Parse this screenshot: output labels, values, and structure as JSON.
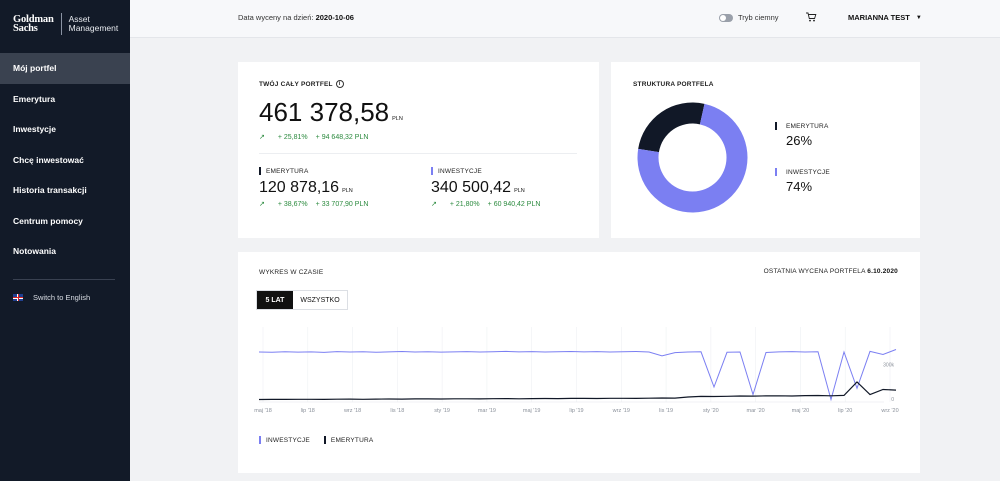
{
  "brand": {
    "name_line1": "Goldman",
    "name_line2": "Sachs",
    "sub_line1": "Asset",
    "sub_line2": "Management"
  },
  "sidebar": {
    "items": [
      {
        "label": "Mój portfel",
        "active": true
      },
      {
        "label": "Emerytura"
      },
      {
        "label": "Inwestycje"
      },
      {
        "label": "Chcę inwestować"
      },
      {
        "label": "Historia transakcji"
      },
      {
        "label": "Centrum pomocy"
      },
      {
        "label": "Notowania"
      }
    ],
    "language": "Switch to English"
  },
  "header": {
    "valuation_label": "Data wyceny na dzień:",
    "valuation_date": "2020-10-06",
    "dark_mode_label": "Tryb ciemny",
    "user_name": "MARIANNA TEST"
  },
  "portfolio": {
    "title": "TWÓJ CAŁY PORTFEL",
    "total": "461 378,58",
    "currency": "PLN",
    "gain_pct": "+ 25,81%",
    "gain_amount": "+ 94 648,32 PLN",
    "emerytura": {
      "label": "EMERYTURA",
      "value": "120 878,16",
      "gain_pct": "+ 38,67%",
      "gain_amount": "+ 33 707,90 PLN"
    },
    "inwestycje": {
      "label": "INWESTYCJE",
      "value": "340 500,42",
      "gain_pct": "+ 21,80%",
      "gain_amount": "+ 60 940,42 PLN"
    }
  },
  "structure": {
    "title": "STRUKTURA PORTFELA",
    "items": [
      {
        "label": "EMERYTURA",
        "pct": "26%",
        "value": 26,
        "color": "#111827"
      },
      {
        "label": "INWESTYCJE",
        "pct": "74%",
        "value": 74,
        "color": "#7b7ff2"
      }
    ]
  },
  "chart_section": {
    "title": "WYKRES W CZASIE",
    "last_valuation_label": "OSTATNIA WYCENA PORTFELA",
    "last_valuation_date": "6.10.2020",
    "range_buttons": [
      "5 LAT",
      "WSZYSTKO"
    ]
  },
  "colors": {
    "inwestycje": "#7b7ff2",
    "emerytura": "#111827",
    "positive": "#2b8a3e",
    "sidebar": "#121a28"
  },
  "chart_data": {
    "type": "line",
    "x_ticks": [
      "maj '18",
      "lip '18",
      "wrz '18",
      "lis '18",
      "sty '19",
      "mar '19",
      "maj '19",
      "lip '19",
      "wrz '19",
      "lis '19",
      "sty '20",
      "mar '20",
      "maj '20",
      "lip '20",
      "wrz '20"
    ],
    "y_ticks": [
      "0",
      "300k"
    ],
    "ylim": [
      0,
      600000
    ],
    "series": [
      {
        "name": "INWESTYCJE",
        "color": "#7b7ff2",
        "values": [
          400000,
          398000,
          402000,
          399000,
          401000,
          397000,
          403000,
          400000,
          402000,
          398000,
          401000,
          404000,
          400000,
          402000,
          399000,
          401000,
          403000,
          400000,
          402000,
          405000,
          401000,
          403000,
          400000,
          402000,
          404000,
          401000,
          403000,
          400000,
          402000,
          404000,
          400000,
          370000,
          395000,
          400000,
          402000,
          120000,
          398000,
          400000,
          60000,
          396000,
          401000,
          403000,
          400000,
          402000,
          20000,
          400000,
          110000,
          405000,
          380000,
          420000
        ]
      },
      {
        "name": "EMERYTURA",
        "color": "#111827",
        "values": [
          20000,
          21000,
          20500,
          21500,
          22000,
          21000,
          22500,
          23000,
          22000,
          23500,
          24000,
          23000,
          24500,
          25000,
          24000,
          25500,
          26000,
          25000,
          26500,
          27000,
          26000,
          27500,
          28000,
          27000,
          28500,
          29000,
          28000,
          29500,
          30000,
          29000,
          30500,
          32000,
          31000,
          40000,
          45000,
          44000,
          46000,
          48000,
          47000,
          49000,
          50000,
          48000,
          51000,
          52000,
          50000,
          53000,
          160000,
          60000,
          100000,
          95000
        ]
      }
    ]
  }
}
